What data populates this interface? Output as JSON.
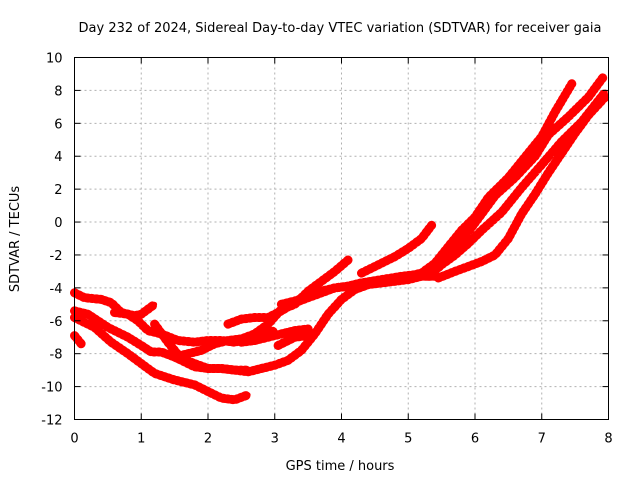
{
  "chart_data": {
    "type": "line",
    "title": "Day 232 of 2024, Sidereal Day-to-day VTEC variation (SDTVAR) for receiver gaia",
    "xlabel": "GPS time / hours",
    "ylabel": "SDTVAR / TECUs",
    "xlim": [
      0,
      8
    ],
    "ylim": [
      -12,
      10
    ],
    "xticks": [
      0,
      1,
      2,
      3,
      4,
      5,
      6,
      7,
      8
    ],
    "yticks": [
      -12,
      -10,
      -8,
      -6,
      -4,
      -2,
      0,
      2,
      4,
      6,
      8,
      10
    ],
    "grid": true,
    "color": "#ff0000",
    "series": [
      {
        "name": "s1",
        "x": [
          0.0,
          0.1
        ],
        "y": [
          -6.9,
          -7.4
        ]
      },
      {
        "name": "s2",
        "x": [
          0.0,
          0.15,
          0.4,
          0.55,
          0.7,
          0.9,
          1.0,
          1.2
        ],
        "y": [
          -4.3,
          -4.6,
          -4.7,
          -4.9,
          -5.5,
          -5.7,
          -5.6,
          -5.0
        ]
      },
      {
        "name": "s3",
        "x": [
          0.0,
          0.2,
          0.5,
          0.8,
          1.0,
          1.15,
          1.3,
          1.5,
          1.65,
          1.8,
          2.0,
          2.2,
          2.4,
          2.6
        ],
        "y": [
          -5.4,
          -5.6,
          -6.4,
          -7.0,
          -7.5,
          -7.9,
          -7.9,
          -8.2,
          -8.5,
          -8.8,
          -8.9,
          -8.9,
          -9.0,
          -9.0
        ]
      },
      {
        "name": "s4",
        "x": [
          0.0,
          0.3,
          0.55,
          0.8,
          1.0,
          1.2,
          1.5,
          1.8,
          2.0,
          2.2,
          2.4,
          2.6
        ],
        "y": [
          -5.8,
          -6.4,
          -7.3,
          -8.0,
          -8.6,
          -9.2,
          -9.6,
          -9.9,
          -10.3,
          -10.7,
          -10.8,
          -10.5
        ]
      },
      {
        "name": "s5",
        "x": [
          0.6,
          0.8,
          0.95,
          1.1,
          1.3,
          1.55,
          1.8,
          2.0,
          2.2,
          2.4,
          2.6,
          2.8,
          3.0
        ],
        "y": [
          -5.5,
          -5.6,
          -6.0,
          -6.6,
          -6.8,
          -7.2,
          -7.3,
          -7.2,
          -7.2,
          -7.3,
          -7.1,
          -6.9,
          -6.6
        ]
      },
      {
        "name": "s6",
        "x": [
          1.5,
          1.7,
          1.9,
          2.1,
          2.3,
          2.5,
          2.7,
          2.9,
          3.1,
          3.3,
          3.5,
          3.7,
          3.9,
          4.1
        ],
        "y": [
          -8.2,
          -8.0,
          -7.8,
          -7.4,
          -7.2,
          -7.1,
          -6.8,
          -6.2,
          -5.3,
          -5.0,
          -4.2,
          -3.6,
          -3.0,
          -2.3
        ]
      },
      {
        "name": "s7",
        "x": [
          1.2,
          1.4,
          1.6,
          1.8,
          2.0,
          2.2,
          2.4,
          2.6,
          2.8,
          3.0,
          3.2,
          3.4,
          3.6,
          3.8,
          4.0,
          4.2,
          4.4,
          4.6,
          4.8,
          5.0,
          5.2,
          5.4
        ],
        "y": [
          -6.2,
          -7.3,
          -8.3,
          -8.6,
          -8.9,
          -8.9,
          -9.0,
          -9.1,
          -8.9,
          -8.7,
          -8.4,
          -7.8,
          -6.8,
          -5.6,
          -4.7,
          -4.1,
          -3.8,
          -3.7,
          -3.6,
          -3.5,
          -3.3,
          -3.3
        ]
      },
      {
        "name": "s8",
        "x": [
          2.3,
          2.5,
          2.7,
          2.9,
          3.1,
          3.3,
          3.5,
          3.7,
          3.9,
          4.1,
          4.3,
          4.5,
          4.7,
          4.9,
          5.1,
          5.3
        ],
        "y": [
          -6.2,
          -5.9,
          -5.8,
          -5.8,
          -5.4,
          -4.9,
          -4.6,
          -4.3,
          -4.0,
          -3.9,
          -3.7,
          -3.6,
          -3.5,
          -3.5,
          -3.3,
          -3.1
        ]
      },
      {
        "name": "s9",
        "x": [
          2.5,
          2.7,
          2.9,
          3.1,
          3.3,
          3.5
        ],
        "y": [
          -7.3,
          -7.2,
          -7.0,
          -6.8,
          -6.6,
          -6.5
        ]
      },
      {
        "name": "s10",
        "x": [
          3.05,
          3.3,
          3.5
        ],
        "y": [
          -7.5,
          -7.0,
          -6.9
        ]
      },
      {
        "name": "s11",
        "x": [
          3.1,
          3.3,
          3.5,
          3.7,
          3.9,
          4.1,
          4.3,
          4.6,
          4.9,
          5.1,
          5.3,
          5.4
        ],
        "y": [
          -5.0,
          -4.8,
          -4.5,
          -4.2,
          -4.0,
          -3.9,
          -3.7,
          -3.5,
          -3.3,
          -3.2,
          -3.0,
          -2.8
        ]
      },
      {
        "name": "s12",
        "x": [
          4.3,
          4.5,
          4.8,
          5.0,
          5.2,
          5.35
        ],
        "y": [
          -3.1,
          -2.7,
          -2.1,
          -1.6,
          -1.0,
          -0.2
        ]
      },
      {
        "name": "s13",
        "x": [
          5.2,
          5.4,
          5.6,
          5.8,
          6.0,
          6.2,
          6.5,
          6.8,
          7.0,
          7.2,
          7.45
        ],
        "y": [
          -3.1,
          -2.5,
          -1.5,
          -0.5,
          0.3,
          1.5,
          2.7,
          4.2,
          5.2,
          6.7,
          8.4
        ]
      },
      {
        "name": "s14",
        "x": [
          5.1,
          5.3,
          5.5,
          5.7,
          5.9,
          6.1,
          6.3,
          6.6,
          6.9,
          7.1,
          7.4,
          7.7,
          7.92
        ],
        "y": [
          -3.3,
          -3.0,
          -2.3,
          -1.5,
          -0.6,
          0.5,
          1.6,
          2.7,
          4.0,
          5.3,
          6.4,
          7.6,
          8.8
        ]
      },
      {
        "name": "s15",
        "x": [
          5.3,
          5.5,
          5.7,
          5.9,
          6.1,
          6.4,
          6.7,
          7.0,
          7.3,
          7.6,
          7.95
        ],
        "y": [
          -3.3,
          -2.6,
          -2.0,
          -1.3,
          -0.5,
          0.6,
          2.1,
          3.5,
          4.9,
          6.1,
          7.9
        ]
      },
      {
        "name": "s16",
        "x": [
          5.45,
          5.7,
          5.9,
          6.1,
          6.3,
          6.5,
          6.7,
          6.9,
          7.1,
          7.3,
          7.5,
          7.7,
          7.95
        ],
        "y": [
          -3.4,
          -3.0,
          -2.7,
          -2.4,
          -2.0,
          -1.0,
          0.5,
          1.7,
          3.0,
          4.2,
          5.4,
          6.5,
          7.6
        ]
      }
    ]
  }
}
